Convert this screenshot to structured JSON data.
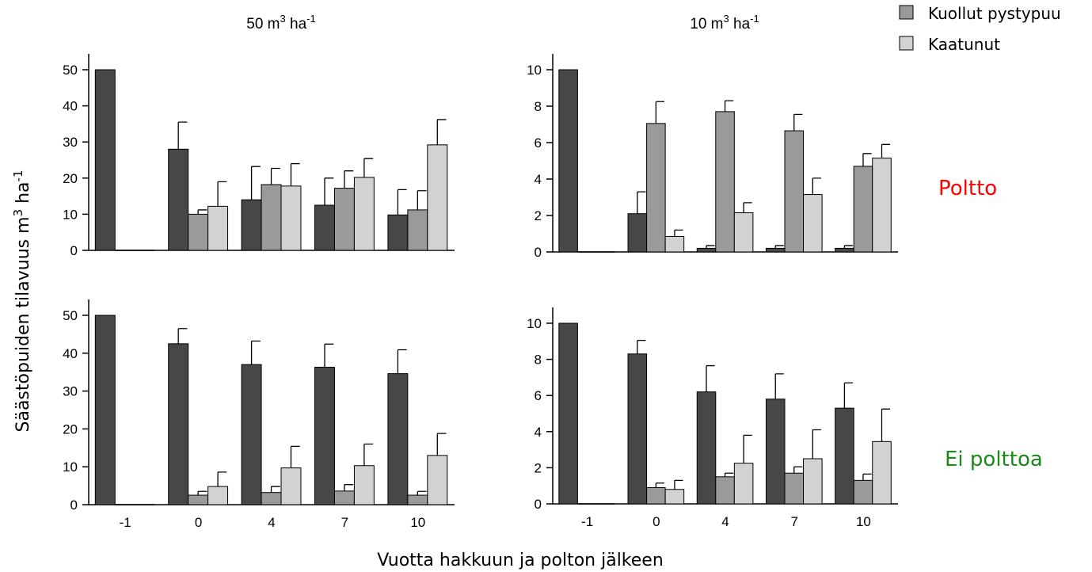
{
  "figure": {
    "xlabel": "Vuotta hakkuun ja polton jälkeen",
    "ylabel_main": "Säästöpuiden tilavuus m",
    "ylabel_sup1": "3",
    "ylabel_mid": " ha",
    "ylabel_sup2": "-1",
    "legend": [
      {
        "label": "Kuollut pystypuu",
        "color": "#9a9a9a"
      },
      {
        "label": "Kaatunut",
        "color": "#d2d2d2"
      }
    ],
    "row_labels": [
      {
        "text": "Poltto",
        "color": "#ff0000"
      },
      {
        "text": "Ei polttoa",
        "color": "#1b8a1b"
      }
    ],
    "column_titles": [
      {
        "base": "50 m",
        "sup1": "3",
        "mid": " ha",
        "sup2": "-1"
      },
      {
        "base": "10 m",
        "sup1": "3",
        "mid": " ha",
        "sup2": "-1"
      }
    ]
  },
  "chart_data": [
    {
      "type": "bar",
      "panel": "top-left",
      "categories": [
        "-1",
        "0",
        "4",
        "7",
        "10"
      ],
      "ylim": [
        0,
        55
      ],
      "yticks": [
        0,
        10,
        20,
        30,
        40,
        50
      ],
      "series": [
        {
          "color": "#474747",
          "values": [
            50,
            28,
            14,
            12.5,
            9.8
          ],
          "errors": [
            0,
            7.5,
            9.2,
            7.5,
            7
          ]
        },
        {
          "color": "#9a9a9a",
          "values": [
            0,
            10,
            18.2,
            17.2,
            11.2
          ],
          "errors": [
            0,
            1.2,
            4.5,
            4.8,
            5.3
          ]
        },
        {
          "color": "#d2d2d2",
          "values": [
            0,
            12.2,
            17.8,
            20.2,
            29.2
          ],
          "errors": [
            0,
            6.8,
            6.2,
            5.2,
            7
          ]
        }
      ]
    },
    {
      "type": "bar",
      "panel": "top-right",
      "categories": [
        "-1",
        "0",
        "4",
        "7",
        "10"
      ],
      "ylim": [
        0,
        10
      ],
      "yticks": [
        0,
        2,
        4,
        6,
        8,
        10
      ],
      "series": [
        {
          "color": "#474747",
          "values": [
            10,
            2.1,
            0.2,
            0.2,
            0.2
          ],
          "errors": [
            0,
            1.2,
            0.15,
            0.15,
            0.15
          ]
        },
        {
          "color": "#9a9a9a",
          "values": [
            0,
            7.05,
            7.7,
            6.65,
            4.7
          ],
          "errors": [
            0,
            1.2,
            0.6,
            0.9,
            0.7
          ]
        },
        {
          "color": "#d2d2d2",
          "values": [
            0,
            0.85,
            2.15,
            3.15,
            5.15
          ],
          "errors": [
            0,
            0.35,
            0.55,
            0.9,
            0.75
          ]
        }
      ]
    },
    {
      "type": "bar",
      "panel": "bottom-left",
      "categories": [
        "-1",
        "0",
        "4",
        "7",
        "10"
      ],
      "ylim": [
        0,
        55
      ],
      "yticks": [
        0,
        10,
        20,
        30,
        40,
        50
      ],
      "series": [
        {
          "color": "#474747",
          "values": [
            50,
            42.5,
            37,
            36.3,
            34.6
          ],
          "errors": [
            0,
            4,
            6.2,
            6.1,
            6.3
          ]
        },
        {
          "color": "#9a9a9a",
          "values": [
            0,
            2.5,
            3.2,
            3.6,
            2.5
          ],
          "errors": [
            0,
            1,
            1.6,
            1.7,
            1
          ]
        },
        {
          "color": "#d2d2d2",
          "values": [
            0,
            4.8,
            9.7,
            10.3,
            13
          ],
          "errors": [
            0,
            3.8,
            5.7,
            5.7,
            5.8
          ]
        }
      ]
    },
    {
      "type": "bar",
      "panel": "bottom-right",
      "categories": [
        "-1",
        "0",
        "4",
        "7",
        "10"
      ],
      "ylim": [
        0,
        10
      ],
      "yticks": [
        0,
        2,
        4,
        6,
        8,
        10
      ],
      "series": [
        {
          "color": "#474747",
          "values": [
            10,
            8.3,
            6.2,
            5.8,
            5.3
          ],
          "errors": [
            0,
            0.75,
            1.45,
            1.4,
            1.4
          ]
        },
        {
          "color": "#9a9a9a",
          "values": [
            0,
            0.9,
            1.5,
            1.7,
            1.3
          ],
          "errors": [
            0,
            0.25,
            0.2,
            0.35,
            0.35
          ]
        },
        {
          "color": "#d2d2d2",
          "values": [
            0,
            0.8,
            2.25,
            2.5,
            3.45
          ],
          "errors": [
            0,
            0.5,
            1.55,
            1.6,
            1.8
          ]
        }
      ]
    }
  ]
}
